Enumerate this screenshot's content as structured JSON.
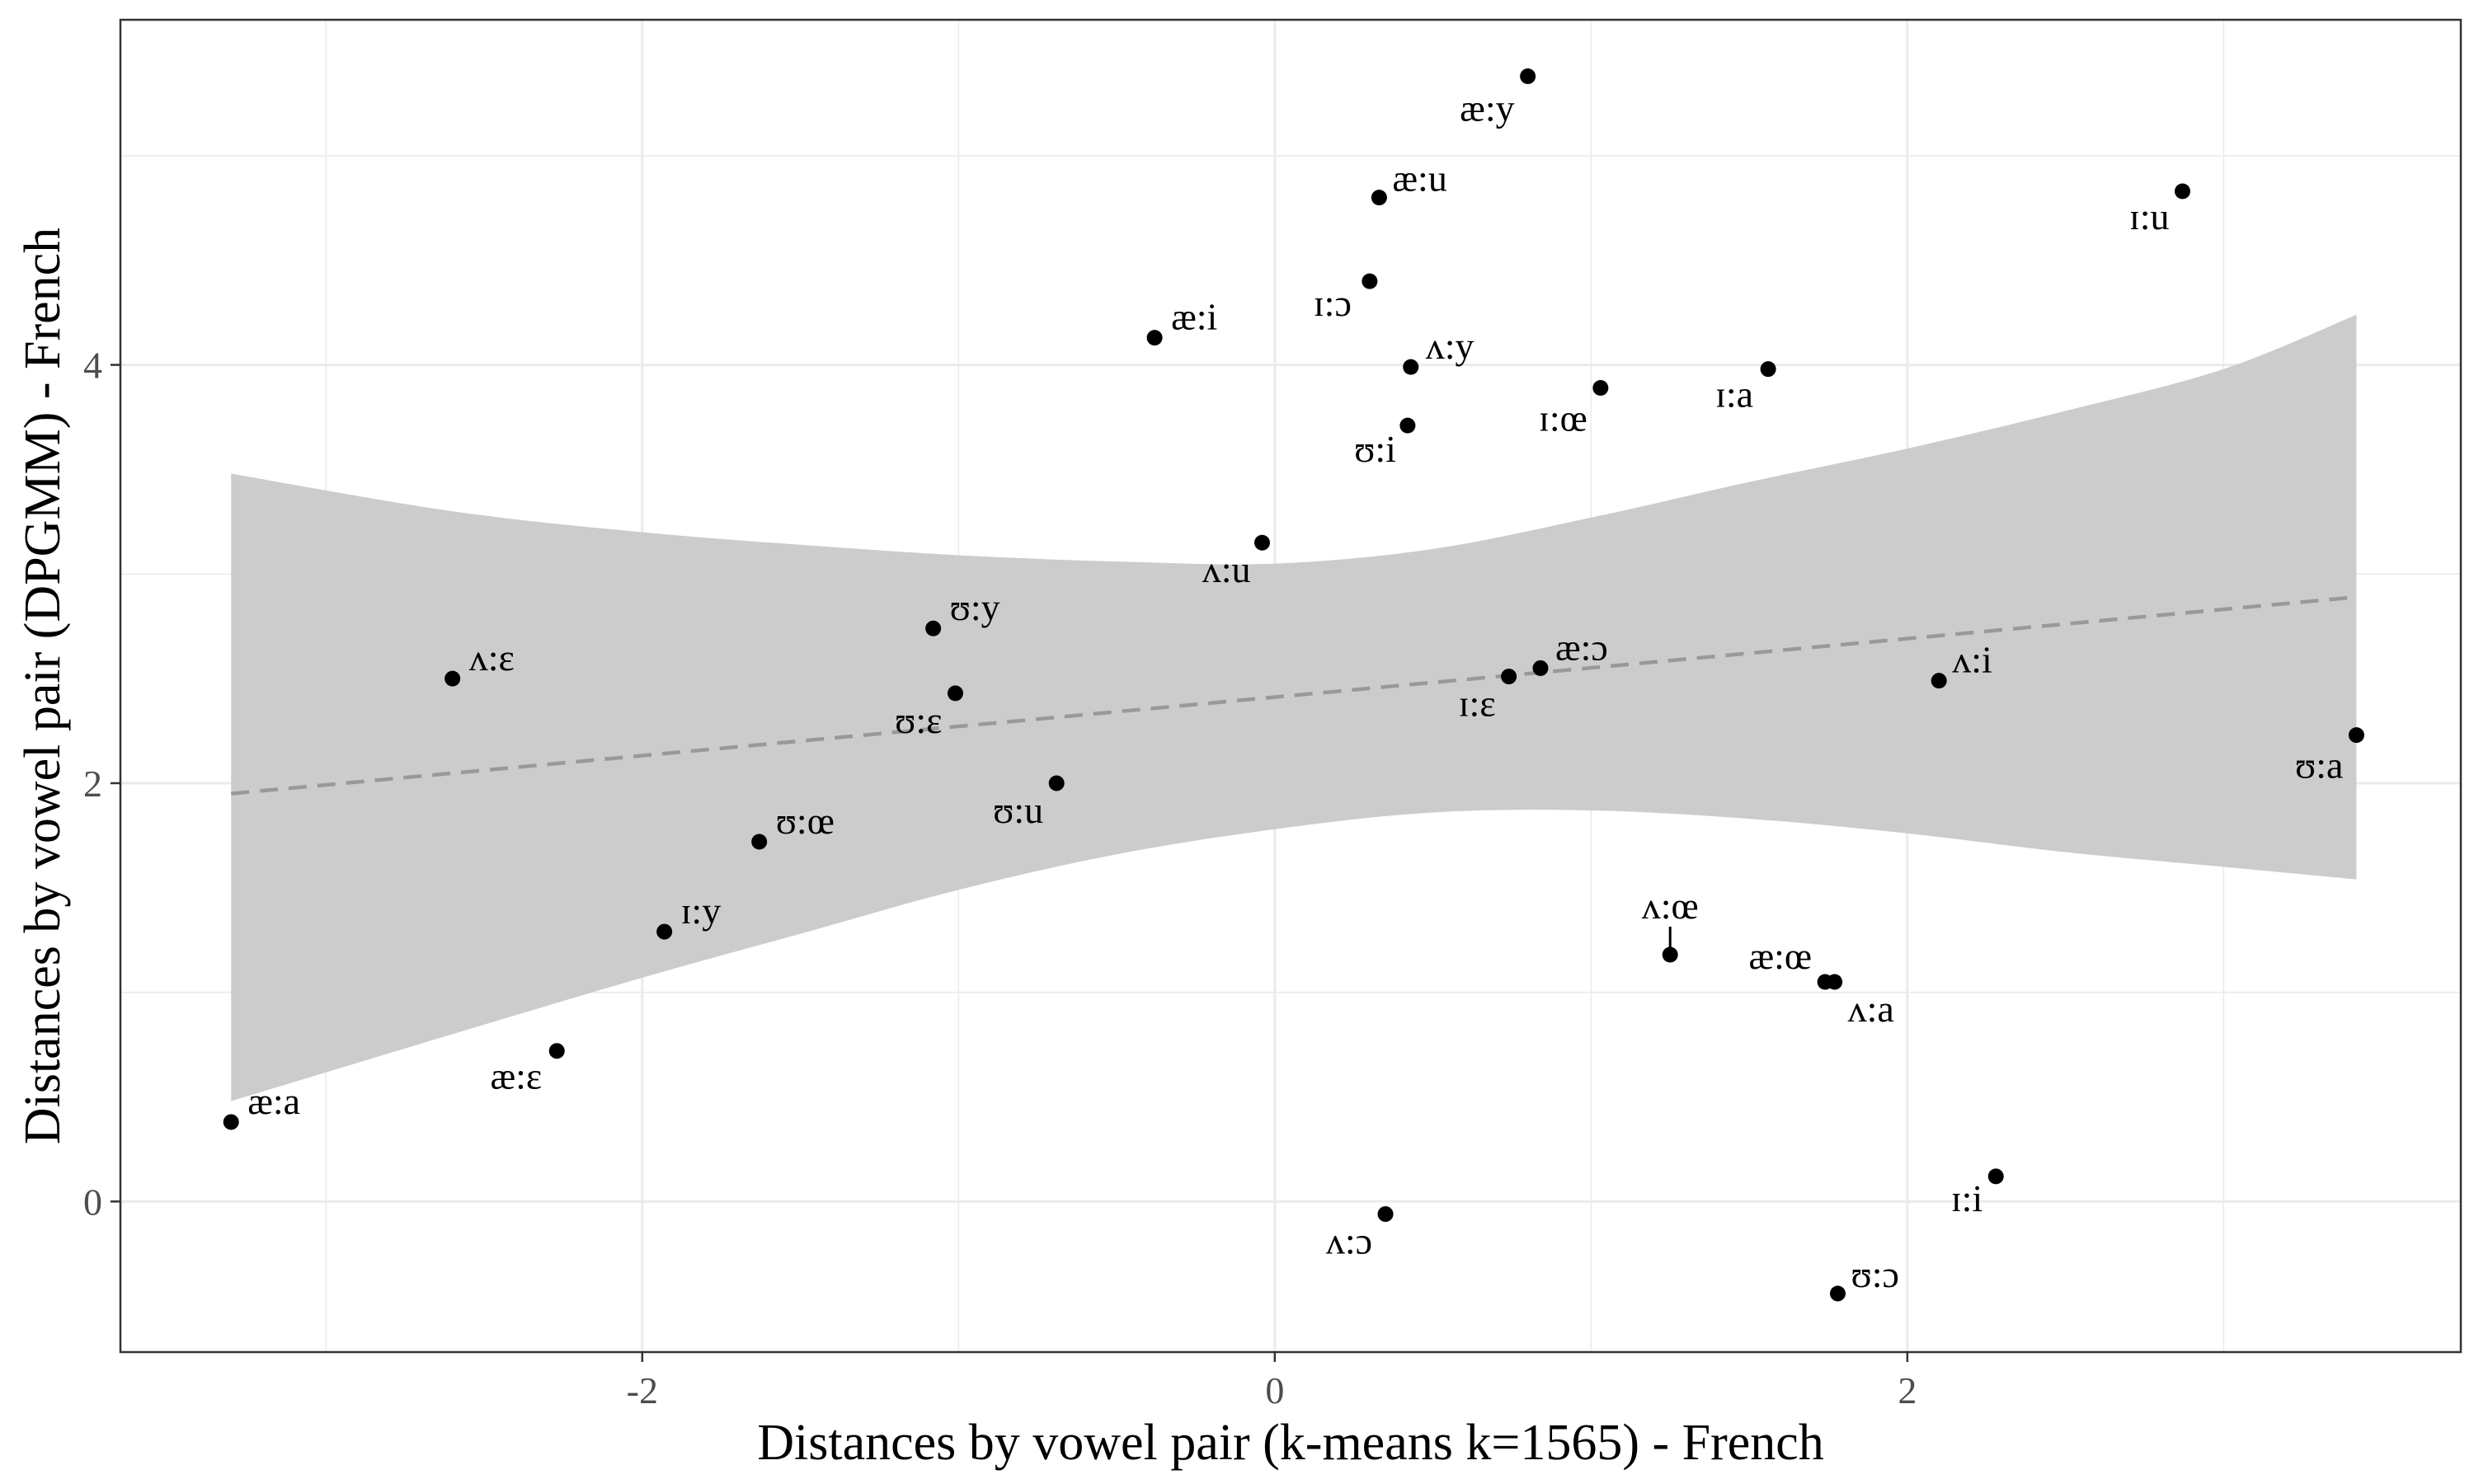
{
  "chart_data": {
    "type": "scatter",
    "xlabel": "Distances by vowel pair (k-means k=1565) - French",
    "ylabel": "Distances by vowel pair (DPGMM) - French",
    "xlim": [
      -3.65,
      3.75
    ],
    "ylim": [
      -0.72,
      5.65
    ],
    "x_ticks": [
      -2,
      0,
      2
    ],
    "x_tick_labels": [
      "-2",
      "0",
      "2"
    ],
    "y_ticks": [
      0,
      2,
      4
    ],
    "y_tick_labels": [
      "0",
      "2",
      "4"
    ],
    "grid": true,
    "points": [
      {
        "label": "æ:a",
        "x": -3.3,
        "y": 0.38
      },
      {
        "label": "æ:ɛ",
        "x": -2.27,
        "y": 0.72
      },
      {
        "label": "ʌ:ɛ",
        "x": -2.6,
        "y": 2.5
      },
      {
        "label": "ɪ:y",
        "x": -1.93,
        "y": 1.29
      },
      {
        "label": "ʊ:œ",
        "x": -1.63,
        "y": 1.72
      },
      {
        "label": "ʊ:y",
        "x": -1.08,
        "y": 2.74
      },
      {
        "label": "ʊ:ɛ",
        "x": -1.01,
        "y": 2.43
      },
      {
        "label": "ʊ:u",
        "x": -0.69,
        "y": 2.0
      },
      {
        "label": "æ:i",
        "x": -0.38,
        "y": 4.13
      },
      {
        "label": "ʌ:u",
        "x": -0.04,
        "y": 3.15
      },
      {
        "label": "ɪ:ɔ",
        "x": 0.3,
        "y": 4.4
      },
      {
        "label": "æ:u",
        "x": 0.33,
        "y": 4.8
      },
      {
        "label": "ʌ:y",
        "x": 0.43,
        "y": 3.99
      },
      {
        "label": "ʊ:i",
        "x": 0.42,
        "y": 3.71
      },
      {
        "label": "æ:y",
        "x": 0.8,
        "y": 5.38
      },
      {
        "label": "ʌ:ɔ",
        "x": 0.35,
        "y": -0.06
      },
      {
        "label": "ɪ:ɛ",
        "x": 0.74,
        "y": 2.51
      },
      {
        "label": "æ:ɔ",
        "x": 0.84,
        "y": 2.55
      },
      {
        "label": "ɪ:œ",
        "x": 1.03,
        "y": 3.89
      },
      {
        "label": "ʌ:œ",
        "x": 1.25,
        "y": 1.18
      },
      {
        "label": "ɪ:a",
        "x": 1.56,
        "y": 3.98
      },
      {
        "label": "æ:œ",
        "x": 1.74,
        "y": 1.05
      },
      {
        "label": "ʌ:a",
        "x": 1.77,
        "y": 1.05
      },
      {
        "label": "ʊ:ɔ",
        "x": 1.78,
        "y": -0.44
      },
      {
        "label": "ʌ:i",
        "x": 2.1,
        "y": 2.49
      },
      {
        "label": "ɪ:i",
        "x": 2.28,
        "y": 0.12
      },
      {
        "label": "ɪ:u",
        "x": 2.87,
        "y": 4.83
      },
      {
        "label": "ʊ:a",
        "x": 3.42,
        "y": 2.23
      }
    ],
    "trend_line": {
      "x": [
        -3.3,
        3.42
      ],
      "y": [
        1.95,
        2.89
      ],
      "style": "dashed",
      "color": "#999999"
    },
    "confidence_band": {
      "x": [
        -3.3,
        -2.6,
        -2.0,
        -1.5,
        -1.0,
        -0.5,
        0.0,
        0.5,
        1.0,
        1.5,
        2.0,
        2.5,
        3.0,
        3.42
      ],
      "lower": [
        0.48,
        0.8,
        1.07,
        1.28,
        1.49,
        1.66,
        1.78,
        1.86,
        1.87,
        1.83,
        1.76,
        1.67,
        1.6,
        1.54
      ],
      "upper": [
        3.48,
        3.3,
        3.2,
        3.14,
        3.09,
        3.06,
        3.05,
        3.12,
        3.27,
        3.44,
        3.6,
        3.78,
        3.98,
        4.24
      ]
    },
    "colors": {
      "point": "#000000",
      "band": "#cccccc",
      "grid": "#ebebeb",
      "frame": "#333333",
      "trend": "#999999"
    }
  }
}
